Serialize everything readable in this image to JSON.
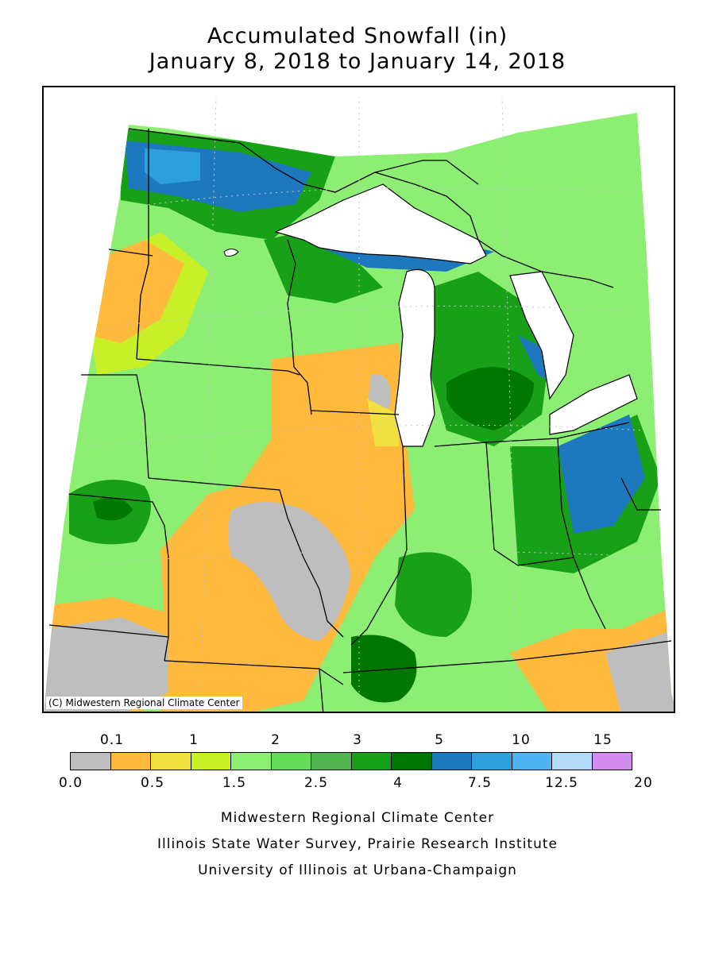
{
  "title_line1": "Accumulated Snowfall (in)",
  "title_line2": "January 8, 2018 to January 14, 2018",
  "map": {
    "credit": "(C) Midwestern Regional Climate Center",
    "colors": {
      "c0": "#bebebe",
      "c1": "#ffb93c",
      "c2": "#f0e040",
      "c3": "#c8f028",
      "c4": "#8cee72",
      "c5": "#64dc5a",
      "c6": "#50b450",
      "c7": "#18a018",
      "c8": "#007800",
      "c9": "#1e78be",
      "c10": "#2da0dc",
      "c11": "#50b4f0",
      "c12": "#b4dcfa",
      "c13": "#d28cf0",
      "water": "#ffffff",
      "line": "#000000",
      "grid": "#c8c8c8"
    }
  },
  "legend": {
    "top_labels": [
      "0.1",
      "1",
      "2",
      "3",
      "5",
      "10",
      "15"
    ],
    "bottom_labels": [
      "0.0",
      "0.5",
      "1.5",
      "2.5",
      "4",
      "7.5",
      "12.5",
      "20"
    ],
    "colors": [
      "#bebebe",
      "#ffb93c",
      "#f0e040",
      "#c8f028",
      "#8cee72",
      "#64dc5a",
      "#50b450",
      "#18a018",
      "#007800",
      "#1e78be",
      "#2da0dc",
      "#50b4f0",
      "#b4dcfa",
      "#d28cf0"
    ]
  },
  "footer": {
    "line1": "Midwestern Regional Climate Center",
    "line2": "Illinois State Water Survey, Prairie Research Institute",
    "line3": "University of Illinois at Urbana-Champaign"
  }
}
